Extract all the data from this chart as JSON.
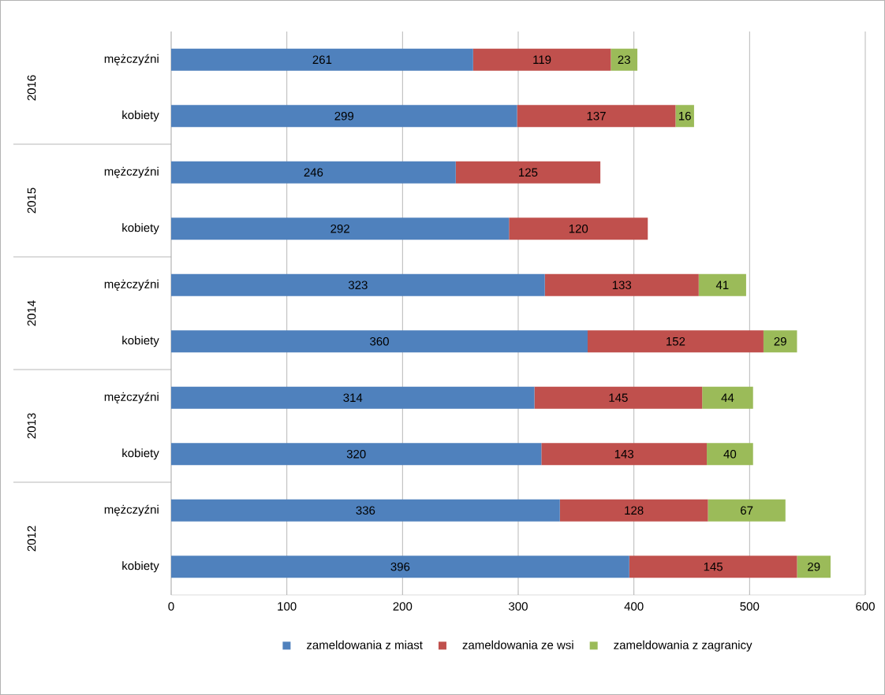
{
  "chart_data": {
    "type": "bar",
    "orientation": "horizontal",
    "stacked": true,
    "categories": [
      "mężczyźni",
      "kobiety",
      "mężczyźni",
      "kobiety",
      "mężczyźni",
      "kobiety",
      "mężczyźni",
      "kobiety",
      "mężczyźni",
      "kobiety"
    ],
    "annotations": [
      "2016",
      "2015",
      "2014",
      "2013",
      "2012"
    ],
    "series": [
      {
        "name": "zameldowania z miast",
        "color": "#4f81bd",
        "values": [
          261,
          299,
          246,
          292,
          323,
          360,
          314,
          320,
          336,
          396
        ]
      },
      {
        "name": "zameldowania ze wsi",
        "color": "#c0504d",
        "values": [
          119,
          137,
          125,
          120,
          133,
          152,
          145,
          143,
          128,
          145
        ]
      },
      {
        "name": "zameldowania z zagranicy",
        "color": "#9bbb59",
        "values": [
          23,
          16,
          null,
          null,
          41,
          29,
          44,
          40,
          67,
          29
        ]
      }
    ],
    "xlim": [
      0,
      600
    ],
    "xticks": [
      0,
      100,
      200,
      300,
      400,
      500,
      600
    ],
    "grid": "x",
    "legend": "bottom",
    "data_labels": true
  }
}
